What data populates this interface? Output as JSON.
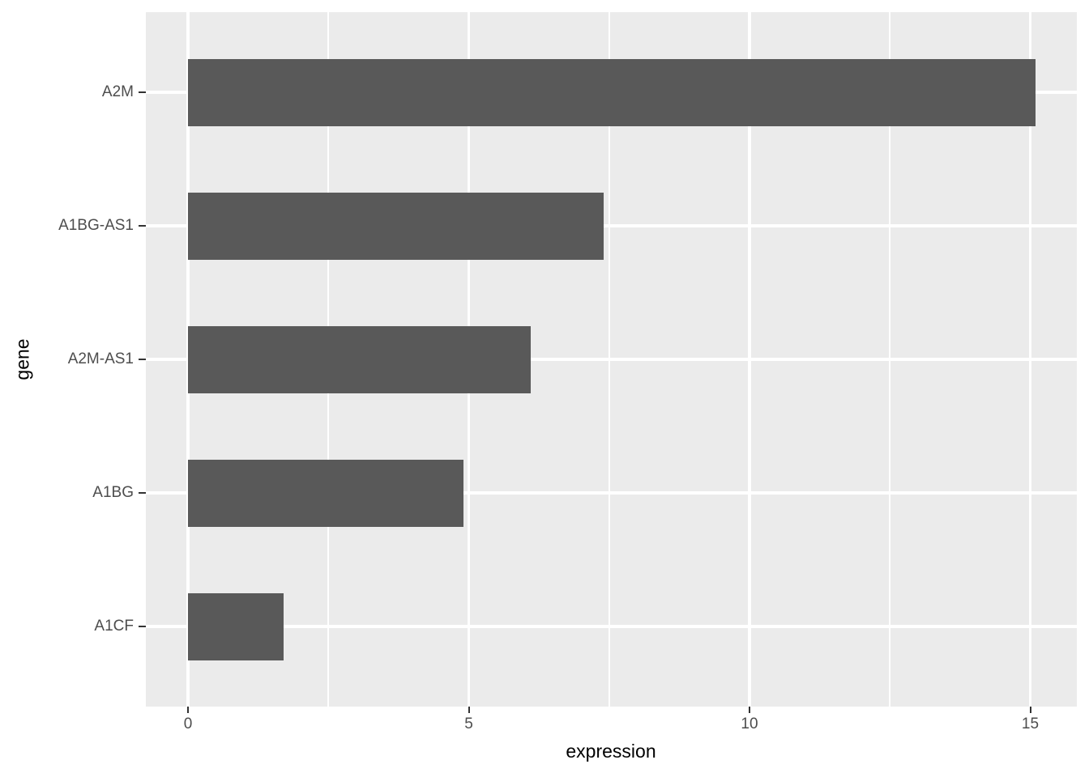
{
  "chart_data": {
    "type": "bar",
    "orientation": "horizontal",
    "title": "",
    "xlabel": "expression",
    "ylabel": "gene",
    "categories": [
      "A2M",
      "A1BG-AS1",
      "A2M-AS1",
      "A1BG",
      "A1CF"
    ],
    "values": [
      15.1,
      7.4,
      6.1,
      4.9,
      1.7
    ],
    "x_major_ticks": [
      0,
      5,
      10,
      15
    ],
    "x_minor_ticks": [
      2.5,
      7.5,
      12.5
    ],
    "xlim": [
      -0.75,
      15.85
    ],
    "grid": "on",
    "legend_position": "none",
    "colors": {
      "bar_fill": "#595959",
      "panel_background": "#EBEBEB",
      "gridline": "#FFFFFF",
      "tick_label": "#4D4D4D",
      "tick_mark": "#333333",
      "axis_title": "#000000",
      "page_background": "#FFFFFF"
    }
  }
}
